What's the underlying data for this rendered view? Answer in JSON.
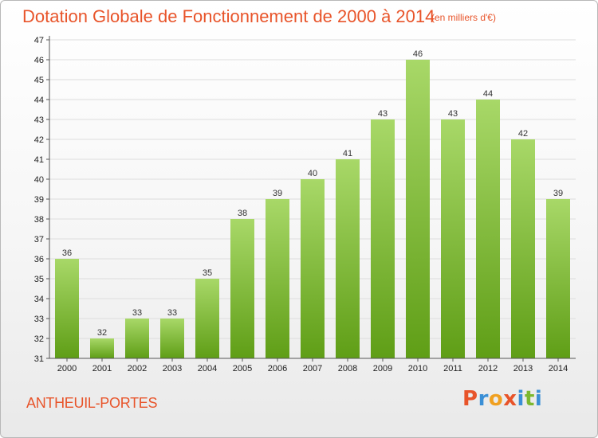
{
  "title": "Dotation Globale de Fonctionnement de 2000 à 2014",
  "subtitle": "(en milliers d'€)",
  "commune": "ANTHEUIL-PORTES",
  "logo": {
    "text": "Proxiti",
    "letter_colors": [
      "#e8542a",
      "#3a8fd6",
      "#f0a020",
      "#e8542a",
      "#3a8fd6",
      "#7cb82f",
      "#3a8fd6"
    ]
  },
  "colors": {
    "bar_top": "#a8d868",
    "bar_bottom": "#5f9e16",
    "grid": "#dddddd",
    "accent": "#e8542a"
  },
  "chart_data": {
    "type": "bar",
    "categories": [
      "2000",
      "2001",
      "2002",
      "2003",
      "2004",
      "2005",
      "2006",
      "2007",
      "2008",
      "2009",
      "2010",
      "2011",
      "2012",
      "2013",
      "2014"
    ],
    "values": [
      36,
      32,
      33,
      33,
      35,
      38,
      39,
      40,
      41,
      43,
      46,
      43,
      44,
      42,
      39
    ],
    "ylim": [
      31,
      47
    ],
    "yticks": [
      31,
      32,
      33,
      34,
      35,
      36,
      37,
      38,
      39,
      40,
      41,
      42,
      43,
      44,
      45,
      46,
      47
    ],
    "grid": true,
    "data_labels": true
  }
}
